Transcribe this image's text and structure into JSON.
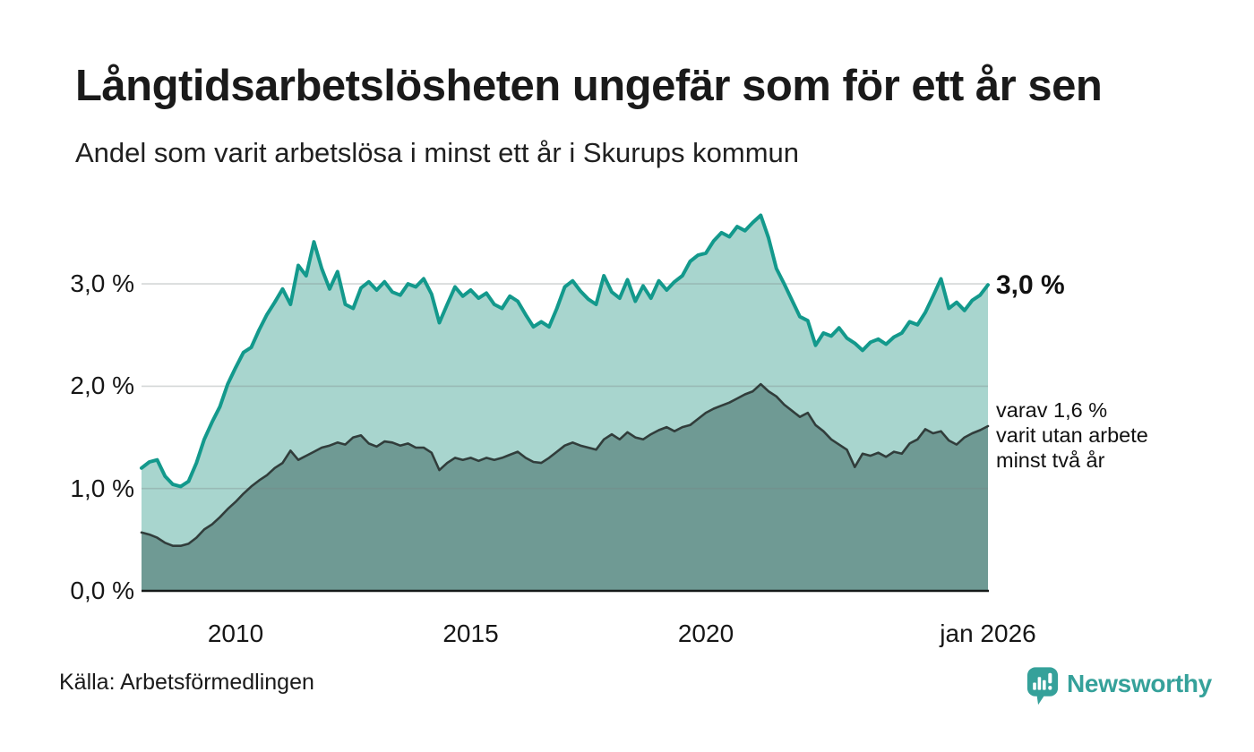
{
  "header": {
    "title": "Långtidsarbetslösheten ungefär som för ett år sen",
    "subtitle": "Andel som varit arbetslösa i minst ett år i Skurups kommun"
  },
  "footer": {
    "source": "Källa: Arbetsförmedlingen",
    "brand": "Newsworthy"
  },
  "colors": {
    "accent_teal": "#13998c",
    "light_fill": "#a8d5ce",
    "dark_fill": "#6f9a94",
    "dark_line": "#313d3b",
    "axis": "#151a19",
    "grid": "rgba(120,132,132,0.32)",
    "logo_teal": "#35a19a"
  },
  "chart_data": {
    "type": "area",
    "title": "Långtidsarbetslösheten ungefär som för ett år sen",
    "subtitle": "Andel som varit arbetslösa i minst ett år i Skurups kommun",
    "unit": "%",
    "x_start_year": 2008,
    "x_end_year": 2026,
    "x_step_months": 2,
    "ylim": [
      0,
      3.8
    ],
    "grid": true,
    "y_ticks": [
      {
        "value": 0,
        "label": "0,0 %"
      },
      {
        "value": 1,
        "label": "1,0 %"
      },
      {
        "value": 2,
        "label": "2,0 %"
      },
      {
        "value": 3,
        "label": "3,0 %"
      }
    ],
    "x_ticks": [
      {
        "year": 2010,
        "label": "2010"
      },
      {
        "year": 2015,
        "label": "2015"
      },
      {
        "year": 2020,
        "label": "2020"
      },
      {
        "year": 2026,
        "label": "jan 2026"
      }
    ],
    "series": [
      {
        "name": "arbetslösa minst ett år",
        "end_label": "3,0 %",
        "latest_value": 3.0,
        "line_color": "#13998c",
        "fill_color": "#a8d5ce",
        "line_width": 4,
        "values": [
          1.2,
          1.26,
          1.28,
          1.12,
          1.04,
          1.02,
          1.07,
          1.25,
          1.48,
          1.65,
          1.8,
          2.02,
          2.18,
          2.33,
          2.38,
          2.55,
          2.7,
          2.82,
          2.95,
          2.8,
          3.18,
          3.08,
          3.41,
          3.15,
          2.95,
          3.12,
          2.8,
          2.76,
          2.96,
          3.02,
          2.94,
          3.02,
          2.92,
          2.89,
          3.0,
          2.97,
          3.05,
          2.9,
          2.62,
          2.8,
          2.97,
          2.88,
          2.94,
          2.86,
          2.91,
          2.8,
          2.76,
          2.88,
          2.83,
          2.7,
          2.58,
          2.63,
          2.58,
          2.76,
          2.97,
          3.03,
          2.93,
          2.85,
          2.8,
          3.08,
          2.92,
          2.86,
          3.04,
          2.83,
          2.98,
          2.86,
          3.03,
          2.94,
          3.02,
          3.08,
          3.22,
          3.28,
          3.3,
          3.42,
          3.5,
          3.46,
          3.56,
          3.52,
          3.6,
          3.67,
          3.45,
          3.15,
          3.0,
          2.84,
          2.68,
          2.64,
          2.4,
          2.52,
          2.49,
          2.57,
          2.47,
          2.42,
          2.35,
          2.43,
          2.46,
          2.41,
          2.48,
          2.52,
          2.63,
          2.6,
          2.72,
          2.88,
          3.05,
          2.76,
          2.82,
          2.74,
          2.84,
          2.89,
          2.99
        ]
      },
      {
        "name": "varav arbetslösa minst två år",
        "end_label": "varav 1,6 %\nvarit utan arbete\nminst två år",
        "latest_value": 1.6,
        "line_color": "#313d3b",
        "fill_color": "#6f9a94",
        "line_width": 2.6,
        "values": [
          0.57,
          0.55,
          0.52,
          0.47,
          0.44,
          0.44,
          0.46,
          0.52,
          0.6,
          0.65,
          0.72,
          0.8,
          0.87,
          0.95,
          1.02,
          1.08,
          1.13,
          1.2,
          1.25,
          1.37,
          1.28,
          1.32,
          1.36,
          1.4,
          1.42,
          1.45,
          1.43,
          1.5,
          1.52,
          1.44,
          1.41,
          1.46,
          1.45,
          1.42,
          1.44,
          1.4,
          1.4,
          1.35,
          1.18,
          1.25,
          1.3,
          1.28,
          1.3,
          1.27,
          1.3,
          1.28,
          1.3,
          1.33,
          1.36,
          1.3,
          1.26,
          1.25,
          1.3,
          1.36,
          1.42,
          1.45,
          1.42,
          1.4,
          1.38,
          1.48,
          1.53,
          1.48,
          1.55,
          1.5,
          1.48,
          1.53,
          1.57,
          1.6,
          1.56,
          1.6,
          1.62,
          1.68,
          1.74,
          1.78,
          1.81,
          1.84,
          1.88,
          1.92,
          1.95,
          2.02,
          1.95,
          1.9,
          1.82,
          1.76,
          1.7,
          1.74,
          1.62,
          1.56,
          1.48,
          1.43,
          1.38,
          1.21,
          1.34,
          1.32,
          1.35,
          1.31,
          1.36,
          1.34,
          1.44,
          1.48,
          1.58,
          1.54,
          1.56,
          1.47,
          1.43,
          1.5,
          1.54,
          1.57,
          1.61
        ]
      }
    ]
  }
}
